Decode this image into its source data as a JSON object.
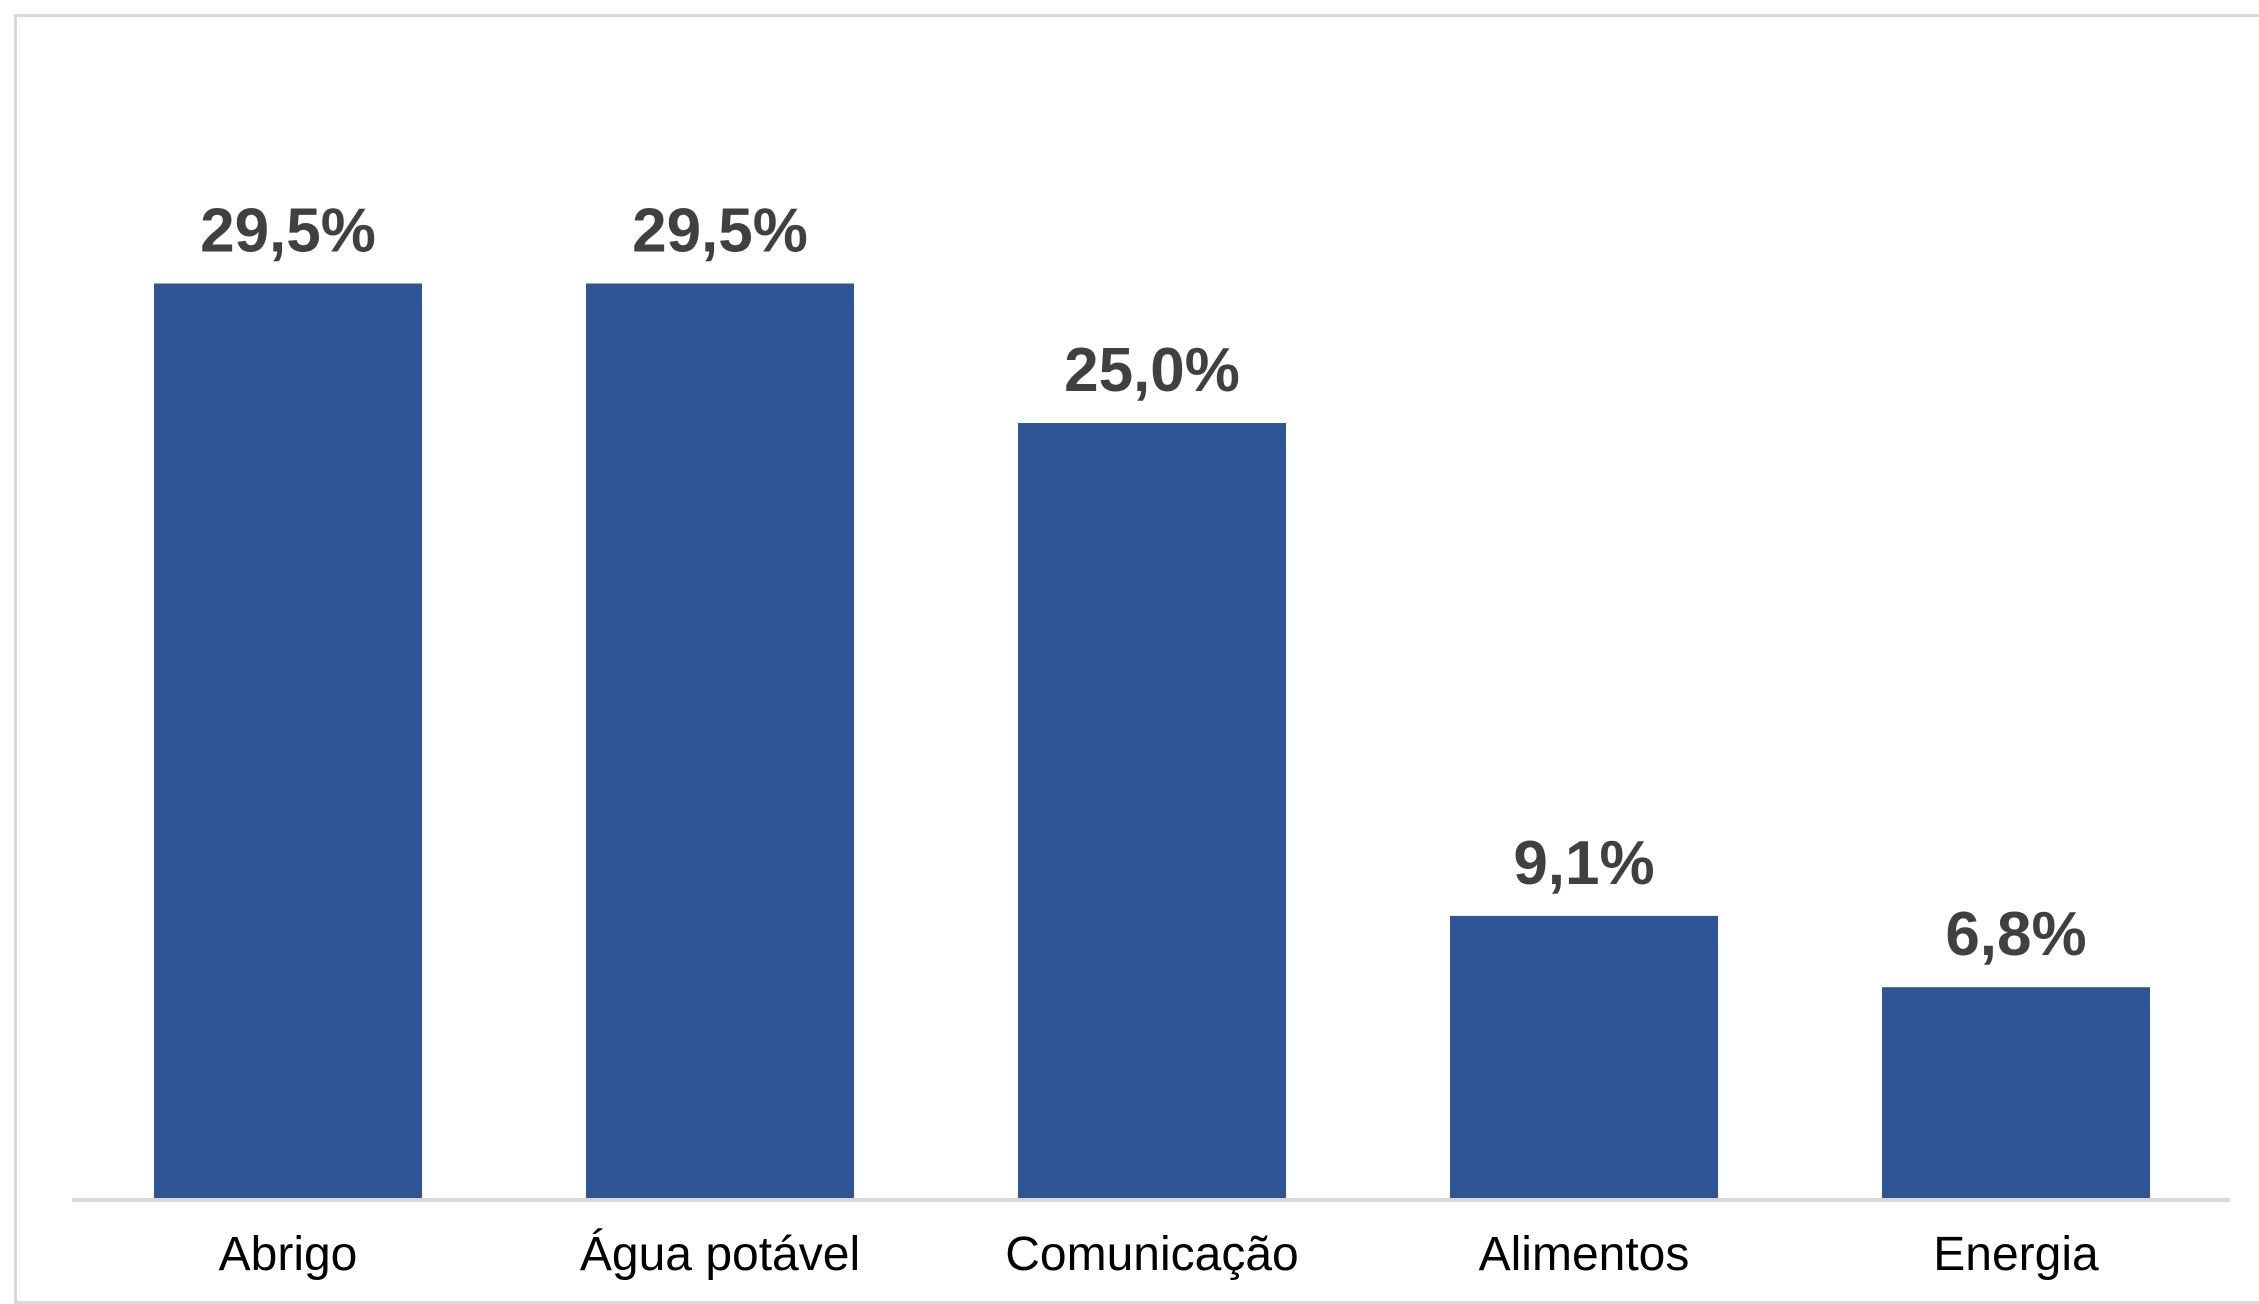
{
  "chart_data": {
    "type": "bar",
    "categories": [
      "Abrigo",
      "Água potável",
      "Comunicação",
      "Alimentos",
      "Energia"
    ],
    "values": [
      29.5,
      29.5,
      25.0,
      9.1,
      6.8
    ],
    "data_labels": [
      "29,5%",
      "29,5%",
      "25,0%",
      "9,1%",
      "6,8%"
    ],
    "title": "",
    "xlabel": "",
    "ylabel": "",
    "ylim": [
      0,
      30
    ],
    "grid": false,
    "legend": "none",
    "bar_color": "#2f5597",
    "axis_color": "#d9d9d9"
  }
}
